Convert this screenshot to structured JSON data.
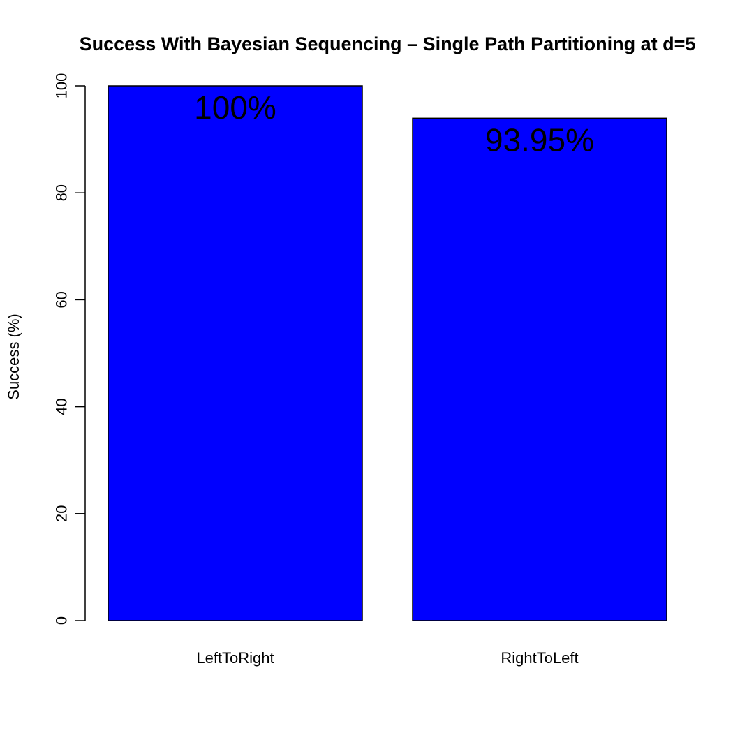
{
  "chart_data": {
    "type": "bar",
    "title": "Success With Bayesian Sequencing – Single Path Partitioning at d=5",
    "xlabel": "",
    "ylabel": "Success (%)",
    "categories": [
      "LeftToRight",
      "RightToLeft"
    ],
    "values": [
      100,
      93.95
    ],
    "data_labels": [
      "100%",
      "93.95%"
    ],
    "ylim": [
      0,
      100
    ],
    "yticks": [
      0,
      20,
      40,
      60,
      80,
      100
    ],
    "ytick_labels": [
      "0",
      "20",
      "40",
      "60",
      "80",
      "100"
    ],
    "grid": false,
    "legend": "none",
    "colors": {
      "bar_fill": "#0000ff",
      "bar_stroke": "#000000",
      "axis": "#000000",
      "background": "#ffffff"
    }
  }
}
